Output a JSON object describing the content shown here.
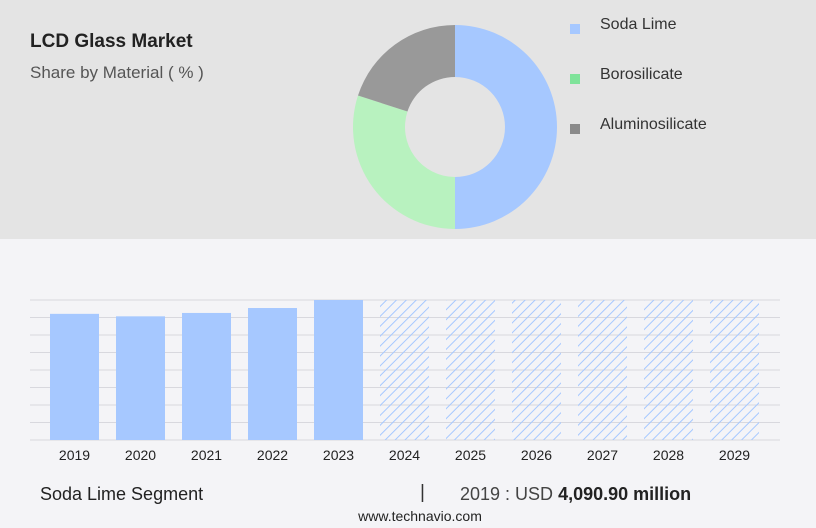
{
  "title": "LCD Glass Market",
  "subtitle": "Share by Material ( % )",
  "legend": [
    {
      "label": "Soda Lime",
      "color": "#a6c8ff"
    },
    {
      "label": "Borosilicate",
      "color": "#7fe39a"
    },
    {
      "label": "Aluminosilicate",
      "color": "#8a8a8a"
    }
  ],
  "chart_data": [
    {
      "type": "pie",
      "title": "Share by Material ( % )",
      "donut": true,
      "categories": [
        "Soda Lime",
        "Borosilicate",
        "Aluminosilicate"
      ],
      "values": [
        50,
        30,
        20
      ],
      "colors": [
        "#a6c8ff",
        "#b8f2bf",
        "#999999"
      ]
    },
    {
      "type": "bar",
      "categories": [
        "2019",
        "2020",
        "2021",
        "2022",
        "2023",
        "2024",
        "2025",
        "2026",
        "2027",
        "2028",
        "2029"
      ],
      "values": [
        4090.9,
        4010,
        4120,
        4280,
        4540,
        4540,
        4540,
        4540,
        4540,
        4540,
        4540
      ],
      "forecast_from": "2024",
      "ylim": [
        0,
        4540
      ],
      "grid": true,
      "bar_color": "#a6c8ff"
    }
  ],
  "footer": {
    "segment": "Soda Lime Segment",
    "separator": "|",
    "year_label": "2019 : USD",
    "value": "4,090.90 million"
  },
  "source": "www.technavio.com"
}
